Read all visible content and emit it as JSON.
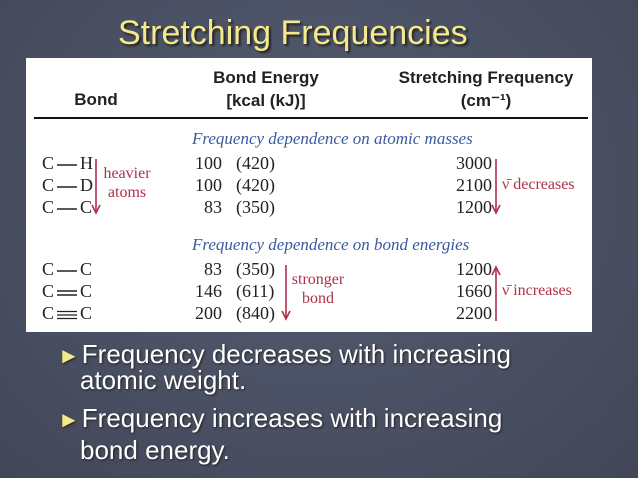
{
  "title": "Stretching Frequencies",
  "table": {
    "headers": {
      "bond": "Bond",
      "energy_line1": "Bond Energy",
      "energy_line2": "[kcal (kJ)]",
      "freq_line1": "Stretching Frequency",
      "freq_line2": "(cm⁻¹)"
    },
    "sections": [
      {
        "title": "Frequency dependence on atomic masses",
        "rows": [
          {
            "bond_left": "C",
            "bond_type": "single",
            "bond_right": "H",
            "kcal": "100",
            "kj": "(420)",
            "freq": "3000"
          },
          {
            "bond_left": "C",
            "bond_type": "single",
            "bond_right": "D",
            "kcal": "100",
            "kj": "(420)",
            "freq": "2100"
          },
          {
            "bond_left": "C",
            "bond_type": "single",
            "bond_right": "C",
            "kcal": "83",
            "kj": "(350)",
            "freq": "1200"
          }
        ],
        "left_note": [
          "heavier",
          "atoms"
        ],
        "right_note": "ν̄ decreases"
      },
      {
        "title": "Frequency dependence on bond energies",
        "rows": [
          {
            "bond_left": "C",
            "bond_type": "single",
            "bond_right": "C",
            "kcal": "83",
            "kj": "(350)",
            "freq": "1200"
          },
          {
            "bond_left": "C",
            "bond_type": "double",
            "bond_right": "C",
            "kcal": "146",
            "kj": "(611)",
            "freq": "1660"
          },
          {
            "bond_left": "C",
            "bond_type": "triple",
            "bond_right": "C",
            "kcal": "200",
            "kj": "(840)",
            "freq": "2200"
          }
        ],
        "middle_note": [
          "stronger",
          "bond"
        ],
        "right_note": "ν̄ increases"
      }
    ]
  },
  "bullets": [
    {
      "line1": "Frequency decreases with increasing",
      "line2": "atomic weight."
    },
    {
      "line1": "Frequency increases with increasing",
      "line2": "bond energy."
    }
  ],
  "colors": {
    "title": "#f4ea8d",
    "background": "#4a5063",
    "note": "#b0304c",
    "section_title": "#3a5aa0",
    "bullet_marker": "#f4ea8d"
  }
}
